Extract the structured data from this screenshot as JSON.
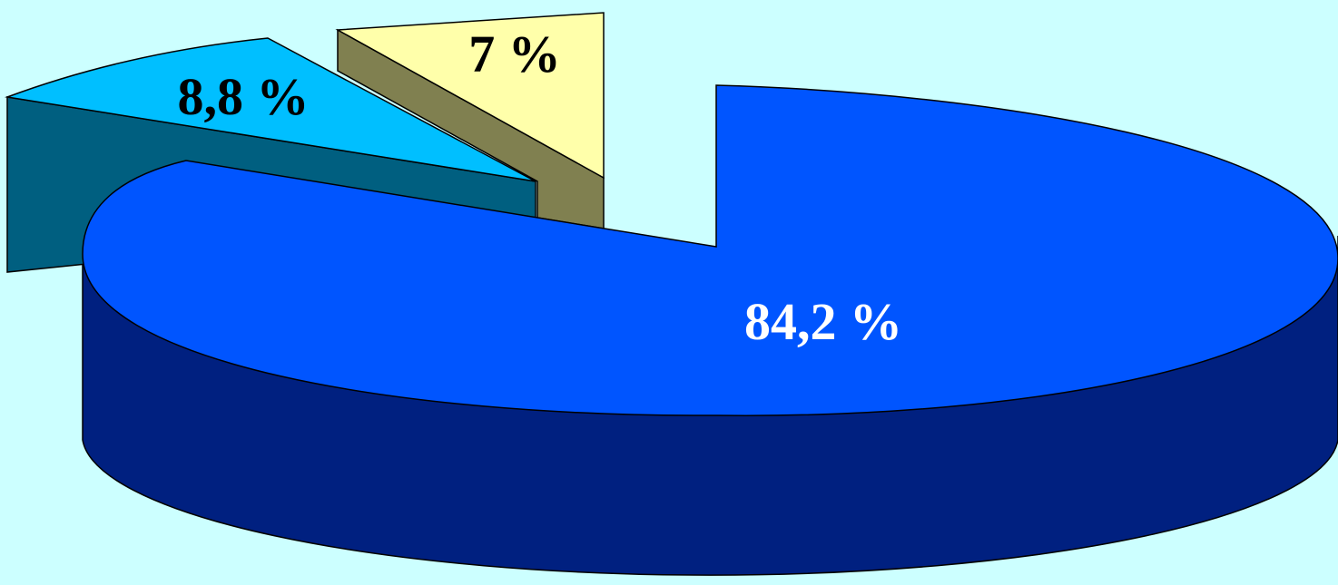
{
  "background_color": "#CCFFFF",
  "chart_data": {
    "type": "pie",
    "three_d": true,
    "exploded": true,
    "title": "",
    "legend": "none",
    "slices": [
      {
        "label": "84,2 %",
        "value": 84.2,
        "top_color": "#0055FF",
        "side_color": "#002080",
        "label_color": "#FFFFFF"
      },
      {
        "label": "8,8 %",
        "value": 8.8,
        "top_color": "#00BFFF",
        "side_color": "#005F80",
        "label_color": "#000000"
      },
      {
        "label": "7 %",
        "value": 7,
        "top_color": "#FFFFAA",
        "side_color": "#808050",
        "label_color": "#000000"
      }
    ]
  }
}
